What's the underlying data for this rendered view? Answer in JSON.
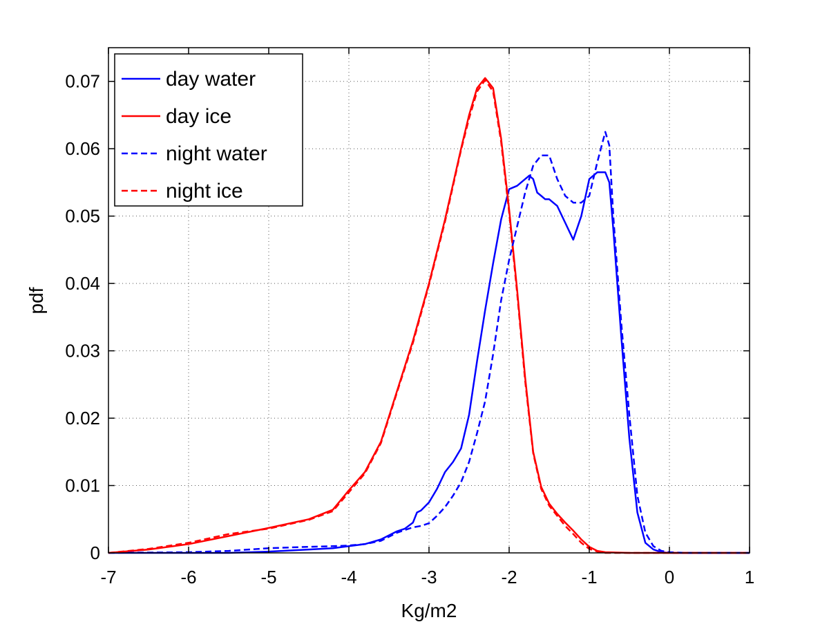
{
  "chart_data": {
    "type": "line",
    "title": "",
    "xlabel": "Kg/m2",
    "ylabel": "pdf",
    "xlim": [
      -7,
      1
    ],
    "ylim": [
      0,
      0.075
    ],
    "xticks": [
      -7,
      -6,
      -5,
      -4,
      -3,
      -2,
      -1,
      0,
      1
    ],
    "xtick_labels": [
      "-7",
      "-6",
      "-5",
      "-4",
      "-3",
      "-2",
      "-1",
      "0",
      "1"
    ],
    "yticks": [
      0,
      0.01,
      0.02,
      0.03,
      0.04,
      0.05,
      0.06,
      0.07
    ],
    "ytick_labels": [
      "0",
      "0.01",
      "0.02",
      "0.03",
      "0.04",
      "0.05",
      "0.06",
      "0.07"
    ],
    "grid": true,
    "legend_position": "top-left",
    "series": [
      {
        "name": "day water",
        "color": "#0000ff",
        "dash": "solid",
        "x": [
          -7,
          -6,
          -5.5,
          -5,
          -4.5,
          -4.2,
          -4,
          -3.8,
          -3.6,
          -3.4,
          -3.3,
          -3.2,
          -3.15,
          -3.1,
          -3.0,
          -2.9,
          -2.8,
          -2.7,
          -2.6,
          -2.5,
          -2.4,
          -2.3,
          -2.2,
          -2.1,
          -2.0,
          -1.9,
          -1.8,
          -1.75,
          -1.7,
          -1.65,
          -1.6,
          -1.55,
          -1.5,
          -1.45,
          -1.4,
          -1.3,
          -1.2,
          -1.1,
          -1.0,
          -0.9,
          -0.8,
          -0.75,
          -0.7,
          -0.6,
          -0.5,
          -0.4,
          -0.3,
          -0.2,
          -0.1,
          0,
          0.2,
          0.5,
          1
        ],
        "y": [
          0,
          0,
          0,
          0.0002,
          0.0005,
          0.0007,
          0.001,
          0.0013,
          0.002,
          0.0032,
          0.0036,
          0.0045,
          0.006,
          0.0063,
          0.0075,
          0.0095,
          0.012,
          0.0135,
          0.0155,
          0.0205,
          0.0285,
          0.036,
          0.043,
          0.0495,
          0.054,
          0.0545,
          0.0555,
          0.056,
          0.0555,
          0.0535,
          0.053,
          0.0525,
          0.0525,
          0.052,
          0.0515,
          0.049,
          0.0465,
          0.05,
          0.0555,
          0.0565,
          0.0565,
          0.055,
          0.048,
          0.032,
          0.017,
          0.006,
          0.0015,
          0.0005,
          0.0001,
          0,
          0,
          0,
          0
        ]
      },
      {
        "name": "day ice",
        "color": "#ff0000",
        "dash": "solid",
        "x": [
          -7,
          -6.5,
          -6,
          -5.5,
          -5,
          -4.5,
          -4.2,
          -4,
          -3.8,
          -3.6,
          -3.4,
          -3.2,
          -3.0,
          -2.8,
          -2.6,
          -2.5,
          -2.4,
          -2.3,
          -2.2,
          -2.1,
          -2.0,
          -1.9,
          -1.8,
          -1.7,
          -1.6,
          -1.5,
          -1.4,
          -1.3,
          -1.2,
          -1.1,
          -1.0,
          -0.9,
          -0.8,
          -0.5,
          0,
          1
        ],
        "y": [
          0,
          0.0005,
          0.0013,
          0.0025,
          0.0037,
          0.005,
          0.0064,
          0.0093,
          0.012,
          0.0165,
          0.024,
          0.0315,
          0.04,
          0.0495,
          0.06,
          0.065,
          0.069,
          0.0705,
          0.069,
          0.0615,
          0.051,
          0.039,
          0.026,
          0.015,
          0.0098,
          0.0073,
          0.0058,
          0.0045,
          0.0033,
          0.002,
          0.0009,
          0.0003,
          0.0001,
          0,
          0,
          0
        ]
      },
      {
        "name": "night water",
        "color": "#0000ff",
        "dash": "dashed",
        "x": [
          -7,
          -6,
          -5.5,
          -5,
          -4.5,
          -4.2,
          -4,
          -3.8,
          -3.6,
          -3.4,
          -3.2,
          -3.1,
          -3.0,
          -2.9,
          -2.8,
          -2.7,
          -2.6,
          -2.5,
          -2.4,
          -2.3,
          -2.2,
          -2.1,
          -2.0,
          -1.9,
          -1.8,
          -1.7,
          -1.6,
          -1.5,
          -1.4,
          -1.3,
          -1.2,
          -1.1,
          -1.0,
          -0.9,
          -0.8,
          -0.75,
          -0.7,
          -0.6,
          -0.5,
          -0.4,
          -0.3,
          -0.2,
          -0.1,
          0,
          0.2,
          0.5,
          1
        ],
        "y": [
          0,
          0.0001,
          0.0003,
          0.0007,
          0.0009,
          0.001,
          0.0011,
          0.0013,
          0.0018,
          0.003,
          0.0038,
          0.004,
          0.0044,
          0.0055,
          0.0068,
          0.0085,
          0.0105,
          0.0135,
          0.0178,
          0.0225,
          0.0295,
          0.0375,
          0.0435,
          0.0485,
          0.0535,
          0.0575,
          0.059,
          0.059,
          0.0555,
          0.053,
          0.052,
          0.052,
          0.053,
          0.058,
          0.0625,
          0.0605,
          0.05,
          0.034,
          0.0205,
          0.0085,
          0.003,
          0.001,
          0.0003,
          0.0001,
          0,
          0,
          0
        ]
      },
      {
        "name": "night ice",
        "color": "#ff0000",
        "dash": "dashed",
        "x": [
          -7,
          -6.5,
          -6,
          -5.5,
          -5,
          -4.5,
          -4.2,
          -4,
          -3.8,
          -3.6,
          -3.4,
          -3.2,
          -3.0,
          -2.8,
          -2.6,
          -2.5,
          -2.4,
          -2.3,
          -2.2,
          -2.1,
          -2.0,
          -1.9,
          -1.8,
          -1.7,
          -1.6,
          -1.5,
          -1.4,
          -1.3,
          -1.2,
          -1.1,
          -1.0,
          -0.9,
          -0.8,
          -0.5,
          0,
          1
        ],
        "y": [
          0,
          0.0006,
          0.0015,
          0.0028,
          0.0036,
          0.0049,
          0.0062,
          0.009,
          0.0118,
          0.0163,
          0.0238,
          0.0312,
          0.0398,
          0.0492,
          0.0598,
          0.0645,
          0.0685,
          0.0702,
          0.0685,
          0.061,
          0.0505,
          0.0385,
          0.0255,
          0.0148,
          0.0095,
          0.007,
          0.0055,
          0.004,
          0.0028,
          0.0015,
          0.0006,
          0.0002,
          0,
          0,
          0,
          0
        ]
      }
    ]
  }
}
